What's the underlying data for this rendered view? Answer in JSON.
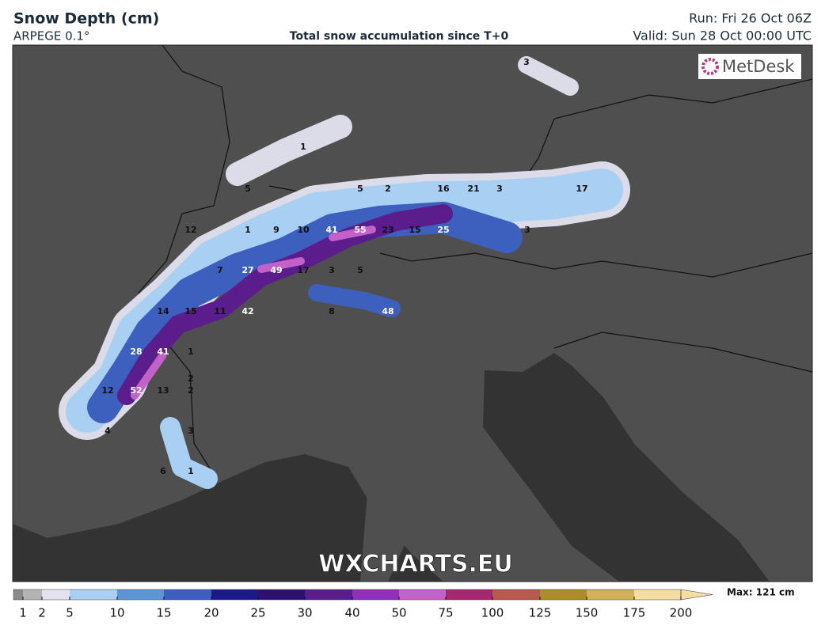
{
  "header": {
    "title": "Snow Depth (cm)",
    "model": "ARPEGE 0.1°",
    "subtitle": "Total snow accumulation since T+0",
    "run": "Run: Fri 26 Oct 06Z",
    "valid": "Valid: Sun 28 Oct 00:00 UTC"
  },
  "logo": "MetDesk",
  "watermark": "WXCHARTS.EU",
  "map_labels": [
    3,
    1,
    5,
    5,
    2,
    16,
    21,
    3,
    17,
    12,
    1,
    9,
    10,
    41,
    55,
    23,
    15,
    25,
    3,
    7,
    27,
    49,
    17,
    3,
    5,
    14,
    15,
    11,
    42,
    8,
    48,
    28,
    41,
    1,
    2,
    12,
    52,
    13,
    2,
    4,
    3,
    6,
    1
  ],
  "legend": {
    "ticks": [
      1,
      2,
      5,
      10,
      15,
      20,
      25,
      30,
      40,
      50,
      75,
      100,
      125,
      150,
      175,
      200
    ],
    "colors": [
      "#8a8a8a",
      "#b4b4b4",
      "#e4e2ee",
      "#a9d0f2",
      "#5b95d4",
      "#3d5fbe",
      "#1c1b86",
      "#2c1170",
      "#5b1c8c",
      "#8f30b6",
      "#c262c8",
      "#a2296f",
      "#b65a4e",
      "#ad8a2b",
      "#d3b05e",
      "#f4dca2"
    ],
    "max_label": "Max: 121 cm"
  }
}
